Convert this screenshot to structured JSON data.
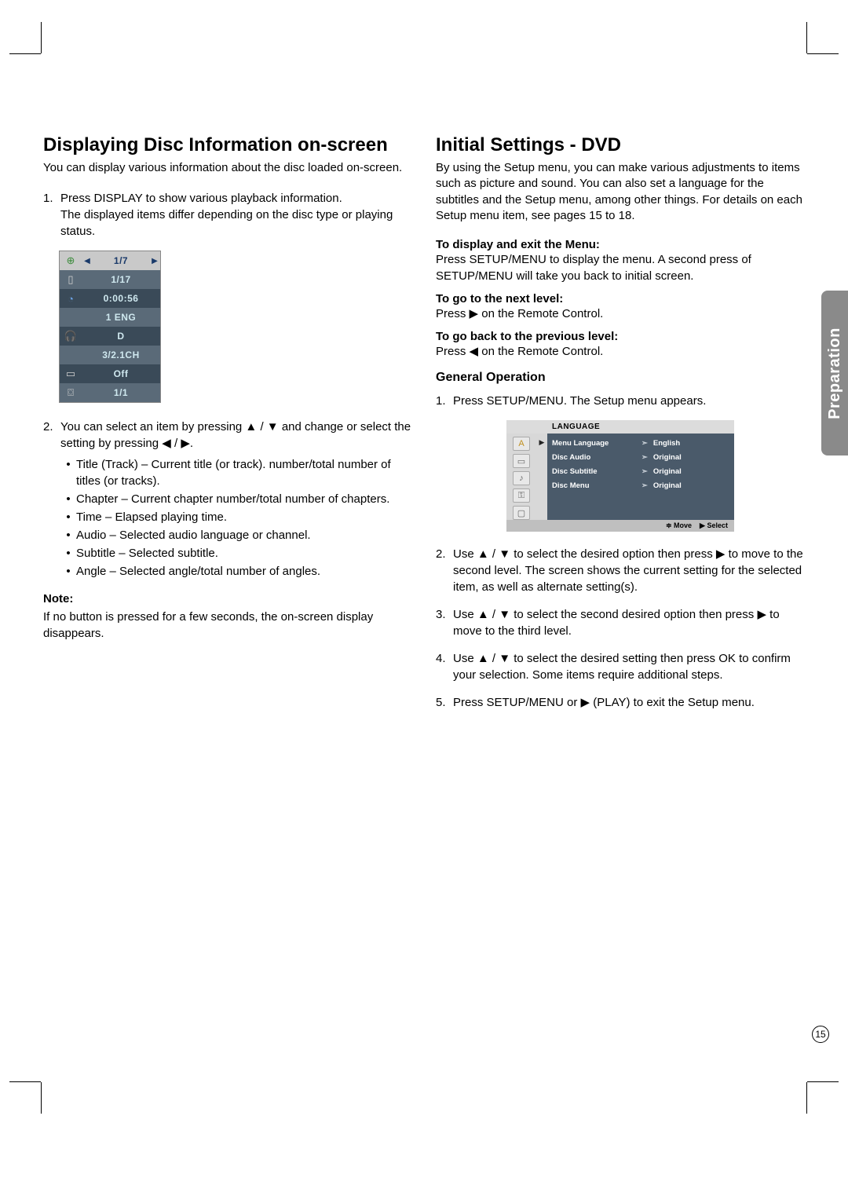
{
  "page_number": "15",
  "side_tab": "Preparation",
  "left": {
    "heading": "Displaying Disc Information on-screen",
    "intro": "You can display various information about the disc loaded on-screen.",
    "step1_a": "Press DISPLAY to show various playback information.",
    "step1_b": "The displayed items differ depending on the disc type or playing status.",
    "osd": {
      "rows": [
        {
          "bg": "#c9c9c9",
          "icon": "⊕",
          "icon_color": "#3a8a3a",
          "value": "1/7",
          "text_color": "#1a3a6a",
          "arrows": true
        },
        {
          "bg": "#5a6a78",
          "icon": "▯",
          "icon_color": "#d0d0d0",
          "value": "1/17",
          "text_color": "#cfe8ef"
        },
        {
          "bg": "#3a4a58",
          "icon": "◔",
          "icon_color": "#6aa0e0",
          "value": "0:00:56",
          "text_color": "#cfe8ef"
        },
        {
          "bg": "#5a6a78",
          "icon": "",
          "value": "1    ENG",
          "text_color": "#cfe8ef"
        },
        {
          "bg": "#3a4a58",
          "icon": "🎧",
          "icon_color": "#d0d0d0",
          "value": "D",
          "text_color": "#cfe8ef"
        },
        {
          "bg": "#5a6a78",
          "icon": "",
          "value": "3/2.1CH",
          "text_color": "#cfe8ef"
        },
        {
          "bg": "#3a4a58",
          "icon": "▭",
          "icon_color": "#d0d0d0",
          "value": "Off",
          "text_color": "#cfe8ef"
        },
        {
          "bg": "#5a6a78",
          "icon": "⌼",
          "icon_color": "#d0d0d0",
          "value": "1/1",
          "text_color": "#cfe8ef"
        }
      ]
    },
    "step2_pre": "You can select an item by pressing ",
    "step2_mid1": " / ",
    "step2_mid2": " and change or select the setting by pressing ",
    "step2_mid3": " / ",
    "step2_post": ".",
    "bullets": [
      "Title (Track) – Current title (or track). number/total number of titles (or tracks).",
      "Chapter – Current chapter number/total number of chapters.",
      "Time – Elapsed playing time.",
      "Audio – Selected audio language or channel.",
      "Subtitle – Selected subtitle.",
      "Angle – Selected angle/total number of angles."
    ],
    "note_head": "Note:",
    "note_body": "If no button is pressed for a few seconds, the on-screen display disappears."
  },
  "right": {
    "heading": "Initial Settings - DVD",
    "intro": "By using the Setup menu, you can make various adjustments to items such as picture and sound. You can also set a language for the subtitles and the Setup menu, among other things. For details on each Setup menu item, see pages 15 to 18.",
    "h_display": "To display and exit the Menu:",
    "p_display": "Press SETUP/MENU to display the menu. A second press of SETUP/MENU will take you back to initial screen.",
    "h_next": "To go to the next level:",
    "p_next_pre": "Press ",
    "p_next_post": " on the Remote Control.",
    "h_back": "To go back to the previous level:",
    "p_back_pre": "Press ",
    "p_back_post": " on the Remote Control.",
    "genop": "General Operation",
    "g1": "Press SETUP/MENU. The Setup menu appears.",
    "menu": {
      "title": "LANGUAGE",
      "rows": [
        {
          "label": "Menu Language",
          "value": "English"
        },
        {
          "label": "Disc Audio",
          "value": "Original"
        },
        {
          "label": "Disc Subtitle",
          "value": "Original"
        },
        {
          "label": "Disc Menu",
          "value": "Original"
        }
      ],
      "footer_move": "Move",
      "footer_select": "Select"
    },
    "g2_a": "Use ",
    "g2_b": " / ",
    "g2_c": " to select the desired option then press ",
    "g2_d": " to move to the second level. The screen shows the current setting for the selected item, as well as alternate setting(s).",
    "g3_a": "Use ",
    "g3_b": " / ",
    "g3_c": " to select the second desired option then press ",
    "g3_d": " to move to the third level.",
    "g4_a": "Use ",
    "g4_b": " / ",
    "g4_c": " to select the desired setting then press OK to confirm your selection. Some items require additional steps.",
    "g5_a": "Press SETUP/MENU or ",
    "g5_b": " (PLAY) to exit the Setup menu."
  },
  "glyphs": {
    "up": "▲",
    "down": "▼",
    "left": "◀",
    "right": "▶",
    "play": "▶"
  }
}
